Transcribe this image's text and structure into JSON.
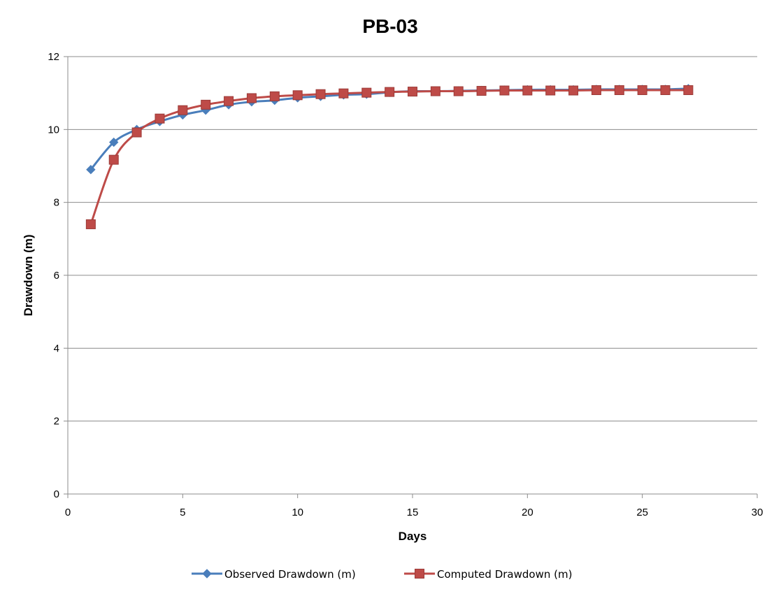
{
  "chart_data": {
    "type": "line",
    "title": "PB-03",
    "xlabel": "Days",
    "ylabel": "Drawdown (m)",
    "xlim": [
      0,
      30
    ],
    "ylim": [
      0,
      12
    ],
    "xticks": [
      0,
      5,
      10,
      15,
      20,
      25,
      30
    ],
    "yticks": [
      0,
      2,
      4,
      6,
      8,
      10,
      12
    ],
    "grid": "horizontal",
    "legend_position": "bottom",
    "series": [
      {
        "name": "Observed Drawdown (m)",
        "color": "#4A7EBB",
        "marker": "diamond",
        "x": [
          1,
          2,
          3,
          4,
          5,
          6,
          7,
          8,
          9,
          10,
          11,
          12,
          13,
          14,
          15,
          16,
          17,
          18,
          19,
          20,
          21,
          22,
          23,
          24,
          25,
          26,
          27
        ],
        "y": [
          8.9,
          9.65,
          10.0,
          10.22,
          10.4,
          10.53,
          10.68,
          10.76,
          10.8,
          10.87,
          10.91,
          10.95,
          10.97,
          11.02,
          11.05,
          11.05,
          11.06,
          11.07,
          11.08,
          11.09,
          11.09,
          11.09,
          11.1,
          11.1,
          11.1,
          11.1,
          11.12
        ]
      },
      {
        "name": "Computed Drawdown (m)",
        "color": "#BE4B48",
        "marker": "square",
        "x": [
          1,
          2,
          3,
          4,
          5,
          6,
          7,
          8,
          9,
          10,
          11,
          12,
          13,
          14,
          15,
          16,
          17,
          18,
          19,
          20,
          21,
          22,
          23,
          24,
          25,
          26,
          27
        ],
        "y": [
          7.4,
          9.17,
          9.92,
          10.3,
          10.53,
          10.68,
          10.78,
          10.86,
          10.91,
          10.94,
          10.97,
          10.99,
          11.01,
          11.03,
          11.04,
          11.05,
          11.05,
          11.06,
          11.07,
          11.07,
          11.07,
          11.07,
          11.08,
          11.08,
          11.08,
          11.08,
          11.08
        ]
      }
    ]
  }
}
